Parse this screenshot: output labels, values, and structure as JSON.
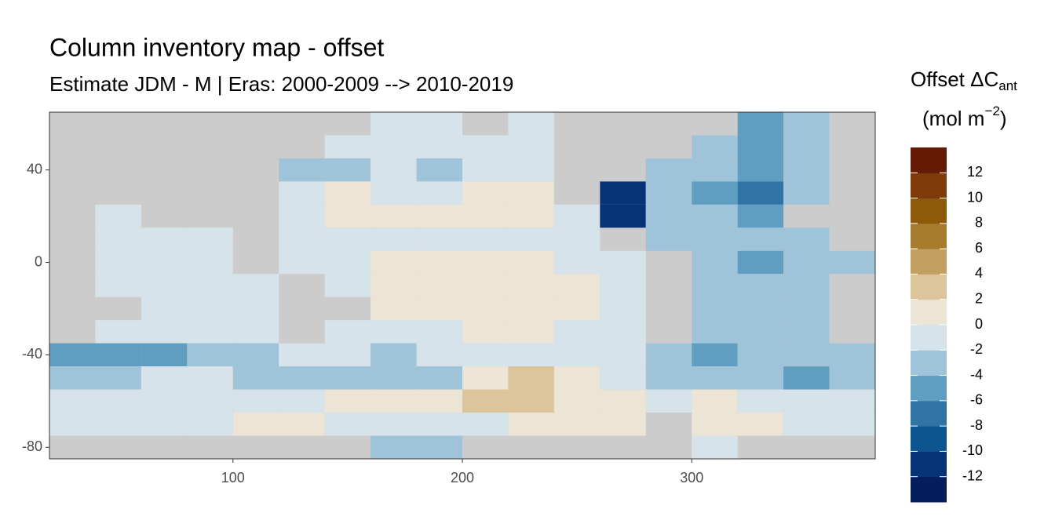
{
  "chart_data": {
    "type": "heatmap",
    "title": "Column inventory map - offset",
    "subtitle": "Estimate JDM - M | Eras: 2000-2009 --> 2010-2019",
    "legend_title": [
      "Offset ΔC",
      "ant"
    ],
    "legend_units": [
      "(mol m",
      "−2",
      ")"
    ],
    "xlim": [
      20,
      380
    ],
    "ylim": [
      -85,
      65
    ],
    "xticks": [
      100,
      200,
      300
    ],
    "yticks": [
      -80,
      -40,
      0,
      40
    ],
    "x": [
      30,
      50,
      70,
      90,
      110,
      130,
      150,
      170,
      190,
      210,
      230,
      250,
      270,
      290,
      310,
      330,
      350,
      370
    ],
    "y": [
      60,
      50,
      40,
      30,
      20,
      10,
      0,
      -10,
      -20,
      -30,
      -40,
      -50,
      -60,
      -70,
      -80
    ],
    "cell_width": 20,
    "cell_height": 10,
    "z": [
      [
        null,
        null,
        null,
        null,
        null,
        null,
        null,
        -1,
        -1,
        null,
        -1,
        null,
        null,
        null,
        null,
        -5,
        -3,
        null
      ],
      [
        null,
        null,
        null,
        null,
        null,
        null,
        -1,
        -1,
        -1,
        -1,
        -1,
        null,
        null,
        null,
        -3,
        -5,
        -3,
        null
      ],
      [
        null,
        null,
        null,
        null,
        null,
        -3,
        -3,
        -1,
        -3,
        -1,
        -1,
        null,
        null,
        -3,
        -3,
        -5,
        -3,
        null
      ],
      [
        null,
        null,
        null,
        null,
        null,
        -1,
        1,
        -1,
        -1,
        1,
        1,
        null,
        -12,
        -3,
        -5,
        -7,
        -3,
        null
      ],
      [
        null,
        -1,
        null,
        null,
        null,
        -1,
        1,
        1,
        1,
        1,
        1,
        -1,
        -12,
        -3,
        -3,
        -5,
        null,
        null
      ],
      [
        null,
        -1,
        -1,
        -1,
        null,
        -1,
        -1,
        -1,
        -1,
        -1,
        -1,
        -1,
        null,
        -3,
        -3,
        -3,
        -3,
        null
      ],
      [
        null,
        -1,
        -1,
        -1,
        null,
        -1,
        -1,
        1,
        1,
        1,
        1,
        -1,
        -1,
        null,
        -3,
        -5,
        -3,
        -3
      ],
      [
        null,
        -1,
        -1,
        -1,
        -1,
        null,
        -1,
        1,
        1,
        1,
        1,
        1,
        -1,
        null,
        -3,
        -3,
        -3,
        null
      ],
      [
        null,
        null,
        -1,
        -1,
        -1,
        null,
        null,
        1,
        1,
        1,
        1,
        1,
        -1,
        null,
        -3,
        -3,
        -3,
        null
      ],
      [
        null,
        -1,
        -1,
        -1,
        -1,
        null,
        -1,
        -1,
        -1,
        1,
        1,
        -1,
        -1,
        null,
        -3,
        -3,
        -3,
        null
      ],
      [
        -5,
        -5,
        -5,
        -3,
        -3,
        -1,
        -1,
        -3,
        -1,
        -1,
        -1,
        -1,
        -1,
        -3,
        -5,
        -3,
        -3,
        -3
      ],
      [
        -3,
        -3,
        -1,
        -1,
        -3,
        -3,
        -3,
        -3,
        -3,
        1,
        3,
        1,
        -1,
        -3,
        -3,
        -3,
        -5,
        -3
      ],
      [
        -1,
        -1,
        -1,
        -1,
        -1,
        -1,
        1,
        1,
        1,
        3,
        3,
        1,
        1,
        -1,
        1,
        -1,
        -1,
        -1
      ],
      [
        -1,
        -1,
        -1,
        -1,
        1,
        1,
        -1,
        -1,
        -1,
        -1,
        1,
        1,
        1,
        null,
        1,
        1,
        -1,
        -1
      ],
      [
        null,
        null,
        null,
        null,
        null,
        null,
        null,
        -3,
        -3,
        null,
        null,
        null,
        null,
        null,
        -1,
        null,
        null,
        null
      ]
    ],
    "colorlim": [
      -14,
      14
    ],
    "colorticks": [
      12,
      10,
      8,
      6,
      4,
      2,
      0,
      -2,
      -4,
      -6,
      -8,
      -10,
      -12
    ],
    "colors": [
      "#061d5c",
      "#063278",
      "#0d5590",
      "#2f74a5",
      "#5f9ec0",
      "#9fc4d9",
      "#d6e3ea",
      "#ece4d5",
      "#dcc59a",
      "#c3a062",
      "#a87c2e",
      "#8c5a0a",
      "#7f3a0a",
      "#651a04"
    ],
    "land_color": "#cccccc"
  }
}
